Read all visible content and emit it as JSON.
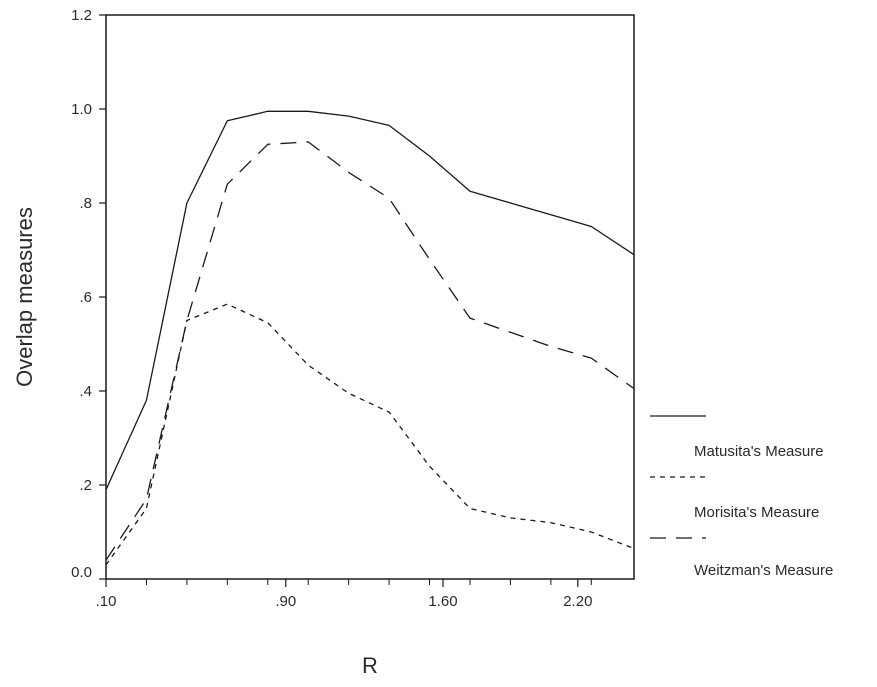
{
  "chart_data": {
    "type": "line",
    "title": "",
    "xlabel": "R",
    "ylabel": "Overlap measures",
    "xlim": [
      0.1,
      2.45
    ],
    "ylim": [
      0.0,
      1.2
    ],
    "x_ticks": [
      {
        "value": 0.1,
        "label": ".10"
      },
      {
        "value": 0.9,
        "label": ".90"
      },
      {
        "value": 1.6,
        "label": "1.60"
      },
      {
        "value": 2.2,
        "label": "2.20"
      }
    ],
    "y_ticks": [
      {
        "value": 0.0,
        "label": "0.0"
      },
      {
        "value": 0.2,
        "label": ".2"
      },
      {
        "value": 0.4,
        "label": ".4"
      },
      {
        "value": 0.6,
        "label": ".6"
      },
      {
        "value": 0.8,
        "label": ".8"
      },
      {
        "value": 1.0,
        "label": "1.0"
      },
      {
        "value": 1.2,
        "label": "1.2"
      }
    ],
    "grid": false,
    "legend_position": "right",
    "series": [
      {
        "name": "Matusita's Measure",
        "line_style": "solid",
        "color": "#1a1a1a",
        "points": [
          [
            0.1,
            0.19
          ],
          [
            0.28,
            0.38
          ],
          [
            0.46,
            0.8
          ],
          [
            0.64,
            0.975
          ],
          [
            0.82,
            0.995
          ],
          [
            1.0,
            0.995
          ],
          [
            1.18,
            0.985
          ],
          [
            1.36,
            0.965
          ],
          [
            1.54,
            0.9
          ],
          [
            1.72,
            0.825
          ],
          [
            1.9,
            0.8
          ],
          [
            2.08,
            0.775
          ],
          [
            2.26,
            0.75
          ],
          [
            2.45,
            0.69
          ]
        ]
      },
      {
        "name": "Morisita's Measure",
        "line_style": "short-dash",
        "color": "#1a1a1a",
        "points": [
          [
            0.1,
            0.03
          ],
          [
            0.28,
            0.15
          ],
          [
            0.46,
            0.55
          ],
          [
            0.64,
            0.585
          ],
          [
            0.82,
            0.545
          ],
          [
            1.0,
            0.455
          ],
          [
            1.18,
            0.395
          ],
          [
            1.36,
            0.355
          ],
          [
            1.54,
            0.24
          ],
          [
            1.72,
            0.15
          ],
          [
            1.9,
            0.13
          ],
          [
            2.08,
            0.12
          ],
          [
            2.26,
            0.1
          ],
          [
            2.45,
            0.065
          ]
        ]
      },
      {
        "name": "Weitzman's Measure",
        "line_style": "long-dash",
        "color": "#1a1a1a",
        "points": [
          [
            0.1,
            0.04
          ],
          [
            0.28,
            0.17
          ],
          [
            0.46,
            0.55
          ],
          [
            0.64,
            0.84
          ],
          [
            0.82,
            0.925
          ],
          [
            1.0,
            0.93
          ],
          [
            1.18,
            0.865
          ],
          [
            1.36,
            0.81
          ],
          [
            1.54,
            0.68
          ],
          [
            1.72,
            0.555
          ],
          [
            1.9,
            0.525
          ],
          [
            2.08,
            0.495
          ],
          [
            2.26,
            0.47
          ],
          [
            2.45,
            0.405
          ]
        ]
      }
    ]
  }
}
